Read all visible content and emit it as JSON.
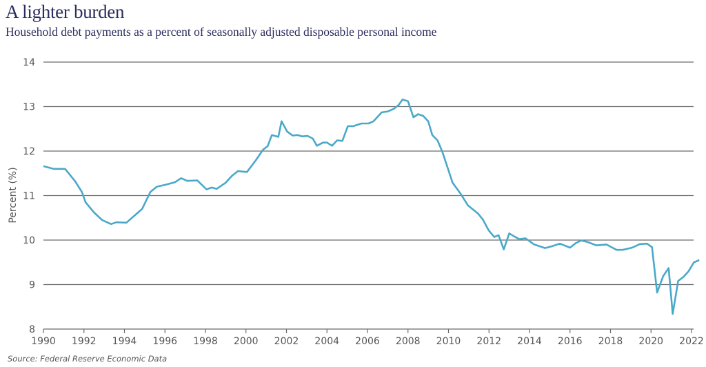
{
  "chart_data": {
    "type": "line",
    "title": "A lighter burden",
    "subtitle": "Household debt payments as a percent of seasonally adjusted disposable personal income",
    "xlabel": "",
    "ylabel": "Percent (%)",
    "source": "Source: Federal Reserve Economic Data",
    "xlim": [
      1990,
      2022.4
    ],
    "ylim": [
      8,
      14
    ],
    "x_ticks": [
      "1990",
      "1992",
      "1994",
      "1996",
      "1998",
      "2000",
      "2002",
      "2004",
      "2006",
      "2008",
      "2010",
      "2012",
      "2014",
      "2016",
      "2018",
      "2020",
      "2022"
    ],
    "y_ticks": [
      "8",
      "9",
      "10",
      "11",
      "12",
      "13",
      "14"
    ],
    "grid": "horizontal",
    "line_color": "#4aa8c8",
    "series": [
      {
        "x": [
          1990.0,
          1990.5,
          1991.07,
          1991.57,
          1991.9,
          1992.08,
          1992.5,
          1992.9,
          1993.34,
          1993.6,
          1994.1,
          1994.6,
          1994.87,
          1995.28,
          1995.6,
          1996.0,
          1996.5,
          1996.8,
          1997.1,
          1997.6,
          1998.05,
          1998.3,
          1998.55,
          1999.0,
          1999.3,
          1999.6,
          2000.05,
          2000.5,
          2000.84,
          2001.07,
          2001.28,
          2001.6,
          2001.76,
          2002.03,
          2002.3,
          2002.55,
          2002.78,
          2003.05,
          2003.3,
          2003.5,
          2003.8,
          2004.0,
          2004.25,
          2004.5,
          2004.76,
          2005.03,
          2005.3,
          2005.7,
          2006.05,
          2006.3,
          2006.7,
          2007.0,
          2007.3,
          2007.55,
          2007.73,
          2008.0,
          2008.27,
          2008.5,
          2008.75,
          2009.0,
          2009.2,
          2009.46,
          2009.7,
          2010.2,
          2010.6,
          2010.96,
          2011.47,
          2011.7,
          2011.98,
          2012.26,
          2012.47,
          2012.73,
          2013.0,
          2013.25,
          2013.5,
          2013.8,
          2014.23,
          2014.77,
          2015.1,
          2015.5,
          2016.0,
          2016.28,
          2016.55,
          2016.85,
          2017.3,
          2017.8,
          2018.3,
          2018.6,
          2019.07,
          2019.45,
          2019.8,
          2020.05,
          2020.3,
          2020.6,
          2020.87,
          2021.07,
          2021.34,
          2021.6,
          2021.84,
          2022.12,
          2022.38
        ],
        "values": [
          11.66,
          11.6,
          11.6,
          11.32,
          11.08,
          10.85,
          10.62,
          10.45,
          10.36,
          10.4,
          10.39,
          10.59,
          10.7,
          11.08,
          11.2,
          11.24,
          11.3,
          11.39,
          11.33,
          11.34,
          11.14,
          11.18,
          11.15,
          11.29,
          11.44,
          11.55,
          11.53,
          11.8,
          12.03,
          12.11,
          12.36,
          12.32,
          12.67,
          12.44,
          12.35,
          12.36,
          12.33,
          12.34,
          12.28,
          12.12,
          12.19,
          12.19,
          12.12,
          12.24,
          12.23,
          12.56,
          12.56,
          12.62,
          12.62,
          12.67,
          12.87,
          12.89,
          12.95,
          13.04,
          13.16,
          13.12,
          12.76,
          12.83,
          12.79,
          12.67,
          12.36,
          12.24,
          11.98,
          11.29,
          11.04,
          10.78,
          10.59,
          10.46,
          10.22,
          10.07,
          10.11,
          9.79,
          10.15,
          10.08,
          10.02,
          10.04,
          9.9,
          9.82,
          9.86,
          9.92,
          9.83,
          9.93,
          9.99,
          9.96,
          9.88,
          9.9,
          9.78,
          9.78,
          9.83,
          9.91,
          9.92,
          9.84,
          8.82,
          9.19,
          9.37,
          8.34,
          9.08,
          9.17,
          9.29,
          9.5,
          9.55
        ]
      }
    ]
  }
}
